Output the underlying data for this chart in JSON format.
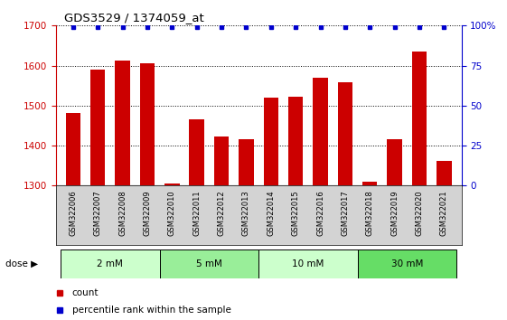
{
  "title": "GDS3529 / 1374059_at",
  "samples": [
    "GSM322006",
    "GSM322007",
    "GSM322008",
    "GSM322009",
    "GSM322010",
    "GSM322011",
    "GSM322012",
    "GSM322013",
    "GSM322014",
    "GSM322015",
    "GSM322016",
    "GSM322017",
    "GSM322018",
    "GSM322019",
    "GSM322020",
    "GSM322021"
  ],
  "counts": [
    1482,
    1590,
    1612,
    1605,
    1305,
    1465,
    1422,
    1415,
    1520,
    1522,
    1570,
    1558,
    1310,
    1415,
    1635,
    1362
  ],
  "percentiles": [
    99,
    99,
    99,
    99,
    99,
    99,
    99,
    99,
    99,
    99,
    99,
    99,
    99,
    99,
    99,
    99
  ],
  "bar_color": "#cc0000",
  "dot_color": "#0000cc",
  "ylim_left": [
    1300,
    1700
  ],
  "ylim_right": [
    0,
    100
  ],
  "yticks_left": [
    1300,
    1400,
    1500,
    1600,
    1700
  ],
  "yticks_right": [
    0,
    25,
    50,
    75,
    100
  ],
  "dose_groups": [
    {
      "label": "2 mM",
      "start": 0,
      "end": 4,
      "color": "#ccffcc"
    },
    {
      "label": "5 mM",
      "start": 4,
      "end": 8,
      "color": "#99ee99"
    },
    {
      "label": "10 mM",
      "start": 8,
      "end": 12,
      "color": "#ccffcc"
    },
    {
      "label": "30 mM",
      "start": 12,
      "end": 16,
      "color": "#66dd66"
    }
  ],
  "left_axis_color": "#cc0000",
  "right_axis_color": "#0000cc",
  "bar_width": 0.6,
  "bg_color": "#ffffff",
  "tick_bg_color": "#d3d3d3"
}
